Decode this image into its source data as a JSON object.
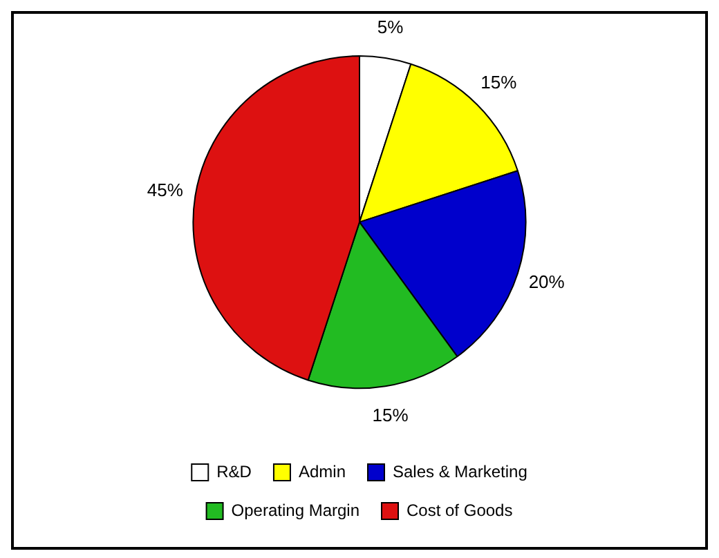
{
  "chart_data": {
    "type": "pie",
    "categories": [
      "R&D",
      "Admin",
      "Sales & Marketing",
      "Operating Margin",
      "Cost of Goods"
    ],
    "values": [
      5,
      15,
      20,
      15,
      45
    ],
    "colors": [
      "#ffffff",
      "#ffff00",
      "#0000cc",
      "#22bb22",
      "#dd1111"
    ],
    "value_labels": [
      "5%",
      "15%",
      "20%",
      "15%",
      "45%"
    ],
    "legend": "bottom"
  }
}
